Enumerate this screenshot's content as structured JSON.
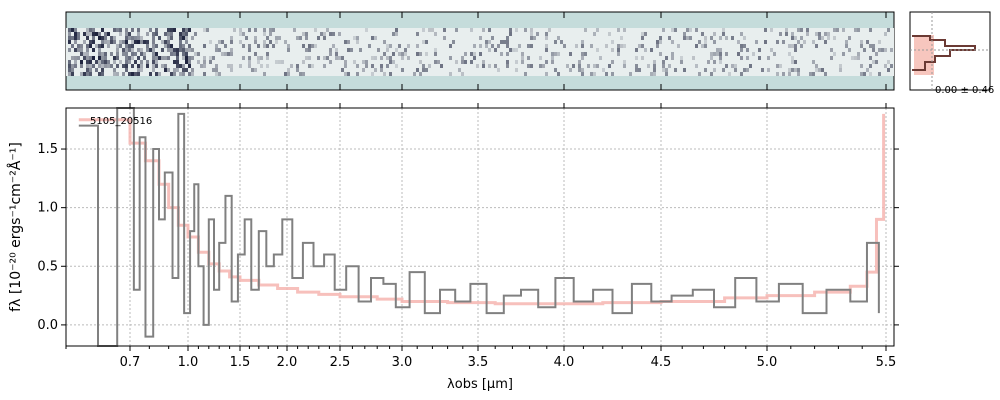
{
  "chart_data": [
    {
      "type": "image",
      "panel": "2d-spectrum",
      "description_color_bg": "#c5dcdb",
      "colors": {
        "background": "#c5dcdb",
        "trace": "#1a1f3a"
      }
    },
    {
      "type": "histogram",
      "panel": "profile",
      "annotation": "0.00 ± 0.46",
      "colors": {
        "fill": "#f7c6be",
        "line": "#6b3a34"
      }
    },
    {
      "type": "line",
      "panel": "1d-spectrum",
      "label": "5105_20516",
      "xlabel": "λobs [µm]",
      "ylabel": "fλ [10⁻²⁰ ergs⁻¹cm⁻²Å⁻¹]",
      "xlim": [
        0.6,
        5.55
      ],
      "ylim": [
        -0.18,
        1.85
      ],
      "x_scale": "nonlinear (prism)",
      "grid": true,
      "xticks": [
        "0.7",
        "1.0",
        "1.5",
        "2.0",
        "2.5",
        "3.0",
        "3.5",
        "4.0",
        "4.5",
        "5.0",
        "5.5"
      ],
      "yticks": [
        "0.0",
        "0.5",
        "1.0",
        "1.5"
      ],
      "colors": {
        "data": "#808080",
        "model": "#f6b5b0"
      },
      "series": [
        {
          "style": "steps-gray",
          "x": [
            0.62,
            0.65,
            0.68,
            0.72,
            0.75,
            0.78,
            0.82,
            0.85,
            0.88,
            0.92,
            0.95,
            0.98,
            1.02,
            1.06,
            1.1,
            1.15,
            1.2,
            1.25,
            1.3,
            1.36,
            1.42,
            1.48,
            1.55,
            1.62,
            1.7,
            1.78,
            1.86,
            1.95,
            2.05,
            2.15,
            2.25,
            2.35,
            2.45,
            2.55,
            2.65,
            2.75,
            2.85,
            2.95,
            3.05,
            3.15,
            3.25,
            3.35,
            3.45,
            3.55,
            3.65,
            3.75,
            3.85,
            3.95,
            4.05,
            4.15,
            4.25,
            4.35,
            4.45,
            4.55,
            4.65,
            4.75,
            4.85,
            4.95,
            5.05,
            5.15,
            5.25,
            5.35,
            5.42,
            5.47
          ],
          "y": [
            1.7,
            -0.2,
            1.9,
            0.3,
            1.6,
            -0.1,
            1.5,
            0.9,
            1.3,
            0.4,
            1.8,
            0.1,
            0.8,
            1.2,
            0.5,
            0.0,
            0.9,
            0.3,
            0.7,
            1.1,
            0.2,
            0.6,
            0.9,
            0.3,
            0.8,
            0.5,
            0.6,
            0.9,
            0.4,
            0.7,
            0.5,
            0.6,
            0.3,
            0.5,
            0.2,
            0.4,
            0.35,
            0.15,
            0.45,
            0.1,
            0.3,
            0.2,
            0.35,
            0.1,
            0.25,
            0.3,
            0.15,
            0.4,
            0.2,
            0.3,
            0.1,
            0.35,
            0.2,
            0.25,
            0.3,
            0.15,
            0.4,
            0.2,
            0.35,
            0.1,
            0.3,
            0.2,
            0.7,
            0.1
          ]
        },
        {
          "style": "steps-pink",
          "x": [
            0.62,
            0.7,
            0.78,
            0.85,
            0.9,
            0.95,
            1.0,
            1.1,
            1.2,
            1.3,
            1.4,
            1.5,
            1.7,
            1.9,
            2.1,
            2.3,
            2.5,
            2.8,
            3.0,
            3.3,
            3.6,
            3.9,
            4.2,
            4.5,
            4.8,
            5.0,
            5.2,
            5.35,
            5.42,
            5.46,
            5.49
          ],
          "y": [
            1.75,
            1.55,
            1.4,
            1.2,
            1.0,
            0.85,
            0.75,
            0.62,
            0.52,
            0.46,
            0.41,
            0.38,
            0.34,
            0.31,
            0.28,
            0.26,
            0.24,
            0.22,
            0.2,
            0.19,
            0.18,
            0.18,
            0.19,
            0.2,
            0.23,
            0.25,
            0.28,
            0.33,
            0.45,
            0.9,
            1.8
          ]
        }
      ]
    }
  ]
}
